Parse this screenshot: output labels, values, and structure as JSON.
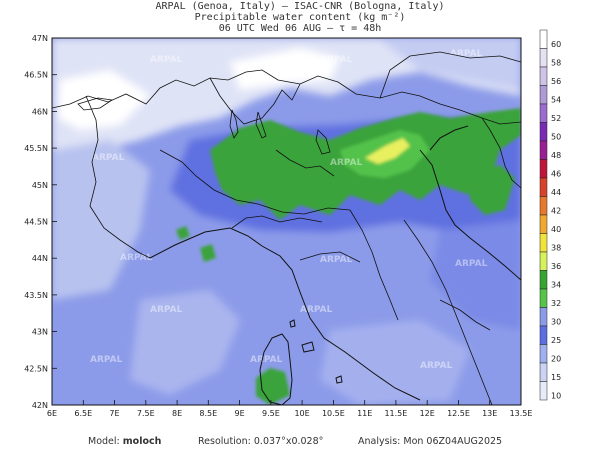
{
  "header": {
    "line1": "ARPAL (Genoa, Italy)  —  ISAC-CNR (Bologna, Italy)",
    "line2": "Precipitable water content (kg m⁻²)",
    "line3": "06 UTC Wed 06 AUG  —  τ = 48h"
  },
  "map": {
    "watermark": "ARPAL",
    "lon_ticks": [
      "6E",
      "6.5E",
      "7E",
      "7.5E",
      "8E",
      "8.5E",
      "9E",
      "9.5E",
      "10E",
      "10.5E",
      "11E",
      "11.5E",
      "12E",
      "12.5E",
      "13E",
      "13.5E"
    ],
    "lat_ticks": [
      "47N",
      "46.5N",
      "46N",
      "45.5N",
      "45N",
      "44.5N",
      "44N",
      "43.5N",
      "43N",
      "42.5N",
      "42N"
    ],
    "colors": {
      "background_high": "#ffffff",
      "pw_low": "#cdd5f2",
      "pw_mid": "#8c9be9",
      "pw_high": "#5d6ee2",
      "pw_31": "#3a9a3a",
      "pw_34": "#4cc24c",
      "pw_38": "#e6ee57"
    }
  },
  "colorbar": {
    "labels": [
      "60",
      "58",
      "56",
      "54",
      "52",
      "50",
      "48",
      "46",
      "44",
      "42",
      "40",
      "38",
      "36",
      "34",
      "32",
      "30",
      "25",
      "20",
      "15",
      "10"
    ],
    "colors": [
      "#ffffff",
      "#e5e0f2",
      "#cfc4e8",
      "#b09ad6",
      "#9b6ccf",
      "#7a2bb6",
      "#9a1f94",
      "#c0143c",
      "#d8422a",
      "#e8792c",
      "#f0a830",
      "#f2e33a",
      "#d6f25a",
      "#37a532",
      "#56c449",
      "#8b9be8",
      "#5c6ee1",
      "#9fb0ee",
      "#cad3f3",
      "#e6ebfa"
    ]
  },
  "footer": {
    "model_label": "Model:",
    "model_value": "moloch",
    "resolution_label": "Resolution:",
    "resolution_value": "0.037°x0.028°",
    "analysis_label": "Analysis:",
    "analysis_value": "Mon 06Z04AUG2025"
  }
}
